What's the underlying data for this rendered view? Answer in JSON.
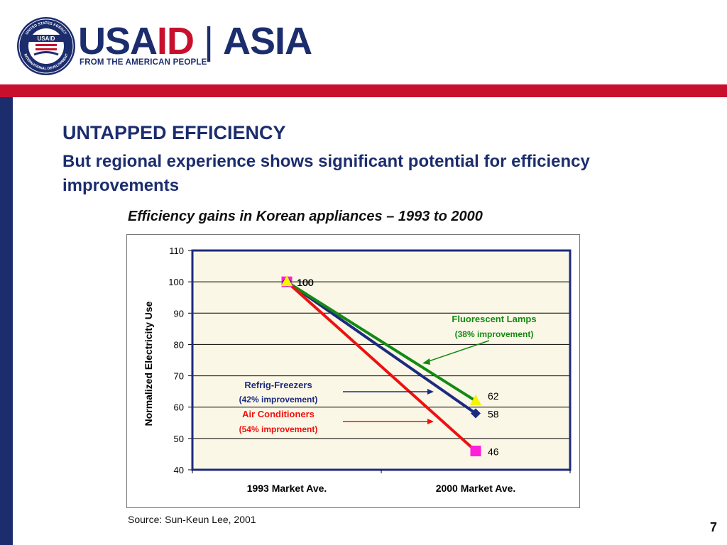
{
  "header": {
    "brand_usa": "USA",
    "brand_id": "ID",
    "brand_separator": "|",
    "brand_region": "ASIA",
    "tagline": "FROM THE AMERICAN PEOPLE",
    "seal_text_top": "UNITED STATES AGENCY",
    "seal_text_bottom": "INTERNATIONAL DEVELOPMENT",
    "seal_center": "USAID",
    "colors": {
      "navy": "#1c2d6e",
      "red": "#c8102e"
    }
  },
  "slide": {
    "title": "UNTAPPED EFFICIENCY",
    "subtitle": "But regional experience shows significant potential for efficiency improvements",
    "chart_caption": "Efficiency gains in Korean appliances – 1993 to 2000",
    "source": "Source: Sun-Keun Lee, 2001",
    "page_number": "7"
  },
  "chart_data": {
    "type": "line",
    "title": "Efficiency gains in Korean appliances – 1993 to 2000",
    "categories": [
      "1993 Market Ave.",
      "2000 Market Ave."
    ],
    "ylabel": "Normalized Electricity Use",
    "xlabel": "",
    "ylim": [
      40,
      110
    ],
    "yticks": [
      40,
      50,
      60,
      70,
      80,
      90,
      100,
      110
    ],
    "plot_background": "#fbf7e6",
    "grid": true,
    "series": [
      {
        "name": "Refrig-Freezers",
        "values": [
          100,
          58
        ],
        "line_color": "#1c2a80",
        "marker": "diamond",
        "marker_color": "#1c2a80",
        "end_label": "58"
      },
      {
        "name": "Fluorescent Lamps",
        "values": [
          100,
          62
        ],
        "line_color": "#138a13",
        "marker": "triangle",
        "marker_color": "#f5f500",
        "end_label": "62"
      },
      {
        "name": "Air Conditioners",
        "values": [
          100,
          46
        ],
        "line_color": "#ee1111",
        "marker": "square",
        "marker_color": "#ff1fd8",
        "end_label": "46"
      }
    ],
    "start_labels": [
      "100",
      "100"
    ],
    "annotations": [
      {
        "series": "Fluorescent Lamps",
        "title": "Fluorescent Lamps",
        "detail": "(38% improvement)",
        "color": "#138a13"
      },
      {
        "series": "Refrig-Freezers",
        "title": "Refrig-Freezers",
        "detail": "(42% improvement)",
        "color": "#1c2a80"
      },
      {
        "series": "Air Conditioners",
        "title": "Air Conditioners",
        "detail": "(54% improvement)",
        "color": "#ee1111"
      }
    ]
  }
}
